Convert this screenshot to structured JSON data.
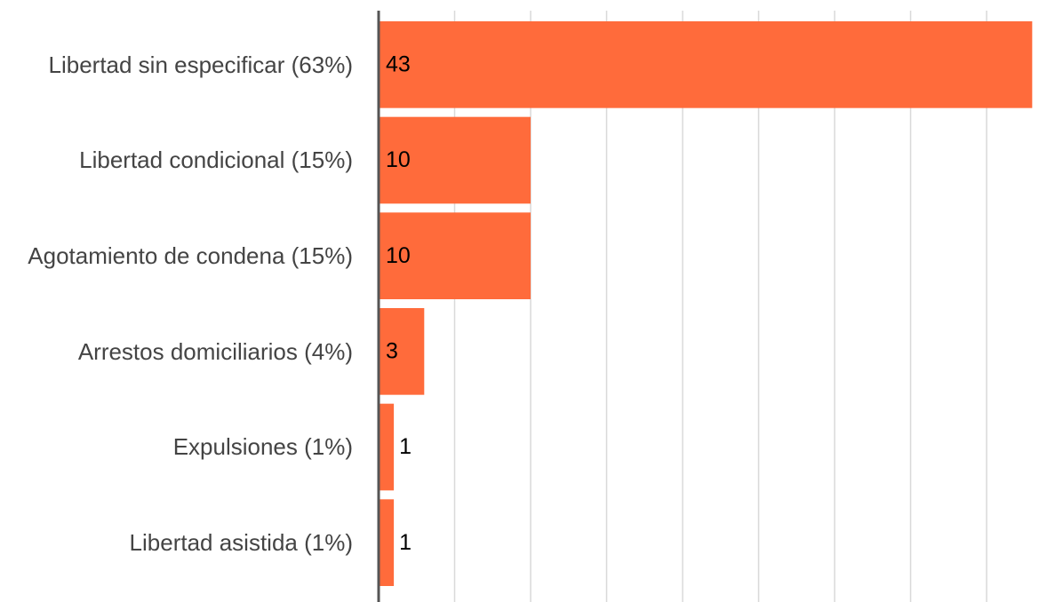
{
  "chart_data": {
    "type": "bar",
    "orientation": "horizontal",
    "categories": [
      "Libertad sin especificar (63%)",
      "Libertad condicional (15%)",
      "Agotamiento de condena (15%)",
      "Arrestos domiciliarios (4%)",
      "Expulsiones (1%)",
      "Libertad asistida (1%)"
    ],
    "values": [
      43,
      10,
      10,
      3,
      1,
      1
    ],
    "color": "#ff6b3b",
    "xlim": [
      0,
      44.5
    ],
    "xticks": [
      0,
      5,
      10,
      15,
      20,
      25,
      30,
      35,
      40
    ],
    "grid": true
  }
}
